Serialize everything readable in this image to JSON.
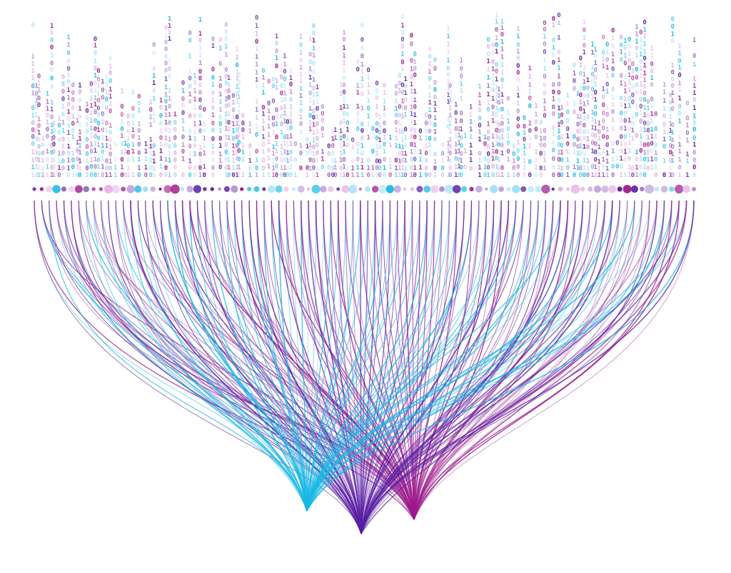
{
  "artwork": {
    "binary_digits": [
      "0",
      "1"
    ],
    "palette": {
      "cyan": "#1ab8e6",
      "violet": "#5a1fa3",
      "magenta": "#9c1a8c",
      "light_pink": "#e6b3e3",
      "light_cyan": "#9fe0f5",
      "lavender": "#b28fd6"
    },
    "sinks": [
      {
        "name": "cyan-sink",
        "color": "#1ab8e6"
      },
      {
        "name": "violet-sink",
        "color": "#5a1fa3"
      },
      {
        "name": "magenta-sink",
        "color": "#9c1a8c"
      }
    ],
    "column_count": 90
  }
}
